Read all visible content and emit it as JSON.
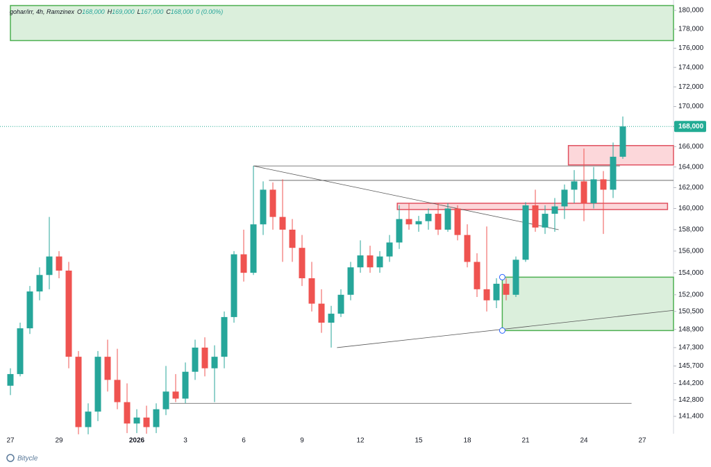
{
  "chart_data": {
    "type": "candlestick",
    "header": {
      "symbol": "gohar/irr, 4h, Ramzinex",
      "items": [
        {
          "key": "O",
          "value": "168,000"
        },
        {
          "key": "H",
          "value": "169,000"
        },
        {
          "key": "L",
          "value": "167,000"
        },
        {
          "key": "C",
          "value": "168,000"
        }
      ],
      "change": "0 (0.00%)"
    },
    "brand": "Bitycle",
    "log_scale": true,
    "grid": false,
    "up_color": "#26a69a",
    "down_color": "#ef5350",
    "categories": [
      "27",
      null,
      null,
      null,
      null,
      "29",
      null,
      null,
      null,
      null,
      null,
      null,
      null,
      "2026",
      null,
      null,
      null,
      null,
      "3",
      null,
      null,
      null,
      null,
      null,
      "6",
      null,
      null,
      null,
      null,
      null,
      "9",
      null,
      null,
      null,
      null,
      null,
      "12",
      null,
      null,
      null,
      null,
      null,
      "15",
      null,
      null,
      null,
      null,
      "18",
      null,
      null,
      null,
      null,
      null,
      "21",
      null,
      null,
      null,
      null,
      null,
      "24",
      null,
      null,
      null,
      null,
      null,
      "27",
      null,
      null,
      null
    ],
    "open": [
      144000,
      145000,
      149000,
      152300,
      153800,
      155500,
      154200,
      146500,
      140500,
      141800,
      146500,
      144500,
      142600,
      140800,
      141300,
      140500,
      142000,
      143500,
      142900,
      145200,
      147300,
      145500,
      146500,
      150000,
      155700,
      154000,
      158500,
      161800,
      159200,
      158000,
      156300,
      153500,
      151200,
      149500,
      150300,
      152000,
      154500,
      155600,
      154500,
      155500,
      156800,
      159000,
      158500,
      158800,
      159500,
      158000,
      160000,
      157500,
      155000,
      152500,
      151500,
      153000,
      152000,
      155200,
      160300,
      158200,
      159500,
      160200,
      161800,
      162600,
      160500,
      162800,
      161800,
      165000,
      null,
      null,
      null,
      null,
      null
    ],
    "high": [
      145500,
      149500,
      152800,
      154500,
      159200,
      156000,
      155000,
      147000,
      142500,
      147000,
      148000,
      147200,
      144200,
      142000,
      142300,
      142500,
      145700,
      145000,
      146000,
      148000,
      148200,
      147500,
      150500,
      156000,
      158000,
      164100,
      162600,
      162500,
      162800,
      159000,
      157500,
      155000,
      152500,
      151000,
      152500,
      155000,
      157000,
      156500,
      156000,
      157500,
      160300,
      160500,
      159300,
      160000,
      160500,
      160500,
      160300,
      158500,
      155800,
      158300,
      153500,
      153500,
      155500,
      160600,
      161800,
      160300,
      161000,
      162300,
      163700,
      165800,
      164000,
      163600,
      166400,
      169000,
      null,
      null,
      null,
      null,
      null
    ],
    "low": [
      143200,
      144800,
      148500,
      151500,
      152500,
      153500,
      145500,
      139900,
      139900,
      141000,
      143500,
      142000,
      140000,
      140000,
      139950,
      140000,
      141500,
      142600,
      142500,
      144500,
      144800,
      142600,
      145500,
      149500,
      153200,
      153800,
      157500,
      158000,
      155000,
      155000,
      152800,
      150500,
      148600,
      147300,
      150000,
      151500,
      154000,
      154000,
      154000,
      155000,
      156200,
      158000,
      157800,
      158000,
      157500,
      157800,
      157000,
      154500,
      151800,
      150500,
      150800,
      151500,
      151800,
      155000,
      157800,
      157600,
      157800,
      159000,
      160500,
      158800,
      160000,
      157600,
      161000,
      164800,
      null,
      null,
      null,
      null,
      null
    ],
    "close": [
      145000,
      149000,
      152300,
      153800,
      155500,
      154200,
      146500,
      140500,
      141800,
      146500,
      144500,
      142600,
      140800,
      141300,
      140500,
      142000,
      143500,
      142900,
      145200,
      147300,
      145500,
      146500,
      150000,
      155700,
      154000,
      158500,
      161800,
      159200,
      158000,
      156300,
      153500,
      151200,
      149500,
      150300,
      152000,
      154500,
      155600,
      154500,
      155500,
      156800,
      159000,
      158500,
      158800,
      159500,
      158000,
      160000,
      157500,
      155000,
      152500,
      151500,
      153000,
      152000,
      155200,
      160300,
      158200,
      159500,
      160200,
      161800,
      162600,
      160500,
      162800,
      161800,
      165000,
      168000,
      null,
      null,
      null,
      null,
      null
    ],
    "ylim": [
      139950,
      180520
    ],
    "yticks": [
      {
        "value": 180000,
        "label": "180,000"
      },
      {
        "value": 178000,
        "label": "178,000"
      },
      {
        "value": 176000,
        "label": "176,000"
      },
      {
        "value": 174000,
        "label": "174,000"
      },
      {
        "value": 172000,
        "label": "172,000"
      },
      {
        "value": 170000,
        "label": "170,000"
      },
      {
        "value": 168000,
        "label": "168,000"
      },
      {
        "value": 166000,
        "label": "166,000"
      },
      {
        "value": 164000,
        "label": "164,000"
      },
      {
        "value": 162000,
        "label": "162,000"
      },
      {
        "value": 160000,
        "label": "160,000"
      },
      {
        "value": 158000,
        "label": "158,000"
      },
      {
        "value": 156000,
        "label": "156,000"
      },
      {
        "value": 154000,
        "label": "154,000"
      },
      {
        "value": 152000,
        "label": "152,000"
      },
      {
        "value": 150500,
        "label": "150,500"
      },
      {
        "value": 148900,
        "label": "148,900"
      },
      {
        "value": 147300,
        "label": "147,300"
      },
      {
        "value": 145700,
        "label": "145,700"
      },
      {
        "value": 144200,
        "label": "144,200"
      },
      {
        "value": 142800,
        "label": "142,800"
      },
      {
        "value": 141400,
        "label": "141,400"
      }
    ],
    "last": {
      "value": 168000,
      "label": "168,000",
      "color": "#22ab94"
    },
    "zones": [
      {
        "x": [
          0,
          69
        ],
        "y": [
          176800,
          180520
        ],
        "fill": "rgba(76,175,80,0.2)",
        "stroke": "#4caf50"
      },
      {
        "x": [
          57.4,
          69
        ],
        "y": [
          164200,
          166100
        ],
        "fill": "rgba(242,54,69,0.2)",
        "stroke": "#e0505f"
      },
      {
        "x": [
          39.8,
          67.6
        ],
        "y": [
          159900,
          160500
        ],
        "fill": "rgba(242,54,69,0.2)",
        "stroke": "#e0505f"
      },
      {
        "x": [
          50.6,
          69
        ],
        "y": [
          148800,
          153600
        ],
        "fill": "rgba(76,175,80,0.2)",
        "stroke": "#4caf50"
      }
    ],
    "lines": [
      {
        "x": [
          25,
          56.4
        ],
        "y": [
          164100,
          158000
        ]
      },
      {
        "x": [
          25,
          62.7
        ],
        "y": [
          164100,
          164100
        ]
      },
      {
        "x": [
          26.6,
          69
        ],
        "y": [
          162700,
          162700
        ]
      },
      {
        "x": [
          33.6,
          69
        ],
        "y": [
          147300,
          150600
        ]
      },
      {
        "x": [
          16.4,
          63.9
        ],
        "y": [
          142500,
          142500
        ]
      }
    ]
  }
}
